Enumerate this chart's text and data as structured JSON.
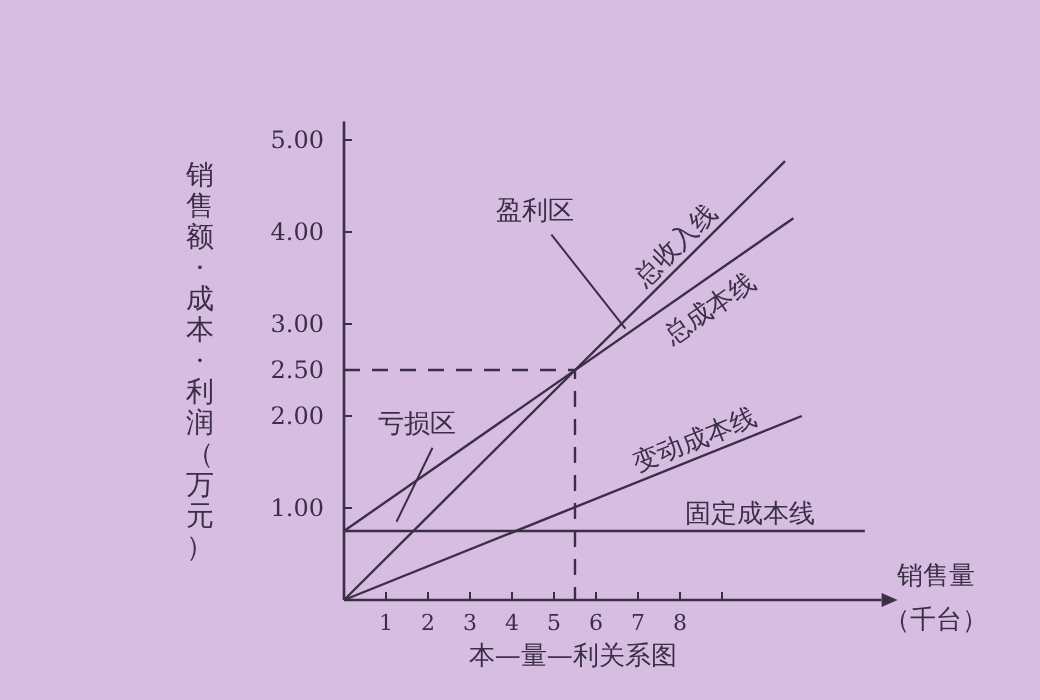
{
  "chart_data": {
    "type": "line",
    "title": "本—量—利关系图",
    "xlabel": "销售量（千台）",
    "ylabel": "销售额·成本·利润（万元）",
    "xlim": [
      0,
      12.8
    ],
    "ylim": [
      0,
      5.2
    ],
    "xticks": [
      1,
      2,
      3,
      4,
      5,
      6,
      7,
      8,
      {
        "value": 9,
        "label": null
      }
    ],
    "yticks": [
      {
        "value": 1,
        "label": "1.00"
      },
      {
        "value": 2,
        "label": "2.00"
      },
      {
        "value": 2.5,
        "label": "2.50"
      },
      {
        "value": 3,
        "label": "3.00"
      },
      {
        "value": 4,
        "label": "4.00"
      },
      {
        "value": 5,
        "label": "5.00"
      }
    ],
    "grid": false,
    "legend": false,
    "marker": "none",
    "series": [
      {
        "name": "总收入线",
        "color": "#3a2f45",
        "x": [
          0,
          10.5
        ],
        "values": [
          0,
          4.77
        ]
      },
      {
        "name": "总成本线",
        "color": "#3a2f45",
        "x": [
          0,
          10.7
        ],
        "values": [
          0.75,
          4.15
        ]
      },
      {
        "name": "变动成本线",
        "color": "#3a2f45",
        "x": [
          0,
          10.9
        ],
        "values": [
          0,
          2.0
        ]
      },
      {
        "name": "固定成本线",
        "color": "#3a2f45",
        "x": [
          0,
          12.4
        ],
        "values": [
          0.75,
          0.75
        ]
      },
      {
        "color": "#3a2f45",
        "line_style": "dashed",
        "x": [
          0,
          5.5,
          5.5
        ],
        "values": [
          2.5,
          2.5,
          0
        ]
      }
    ],
    "annotations": [
      {
        "text": "盈利区",
        "x": 6.7,
        "y": 2.95
      },
      {
        "text": "亏损区",
        "x": 1.25,
        "y": 0.85
      }
    ]
  }
}
